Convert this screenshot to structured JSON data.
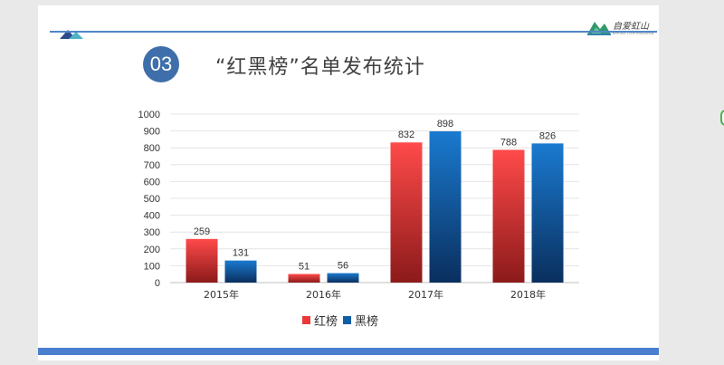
{
  "slide": {
    "section_number": "03",
    "title": "“红黑榜”名单发布统计",
    "brand_name": "自爱虹山",
    "brand_sub": "NATURAL LOVE HONGSHAN"
  },
  "colors": {
    "accent": "#3f6faa",
    "red_series": "#e83a3a",
    "black_series": "#0f5fa8"
  },
  "chart_data": {
    "type": "bar",
    "categories": [
      "2015年",
      "2016年",
      "2017年",
      "2018年"
    ],
    "series": [
      {
        "name": "红榜",
        "values": [
          259,
          51,
          832,
          788
        ],
        "color": "#e83a3a"
      },
      {
        "name": "黑榜",
        "values": [
          131,
          56,
          898,
          826
        ],
        "color": "#0f5fa8"
      }
    ],
    "yticks": [
      "0",
      "100",
      "200",
      "300",
      "400",
      "500",
      "600",
      "700",
      "800",
      "900",
      "1000"
    ],
    "ylim": [
      0,
      1000
    ],
    "grid": true,
    "legend_position": "bottom"
  }
}
